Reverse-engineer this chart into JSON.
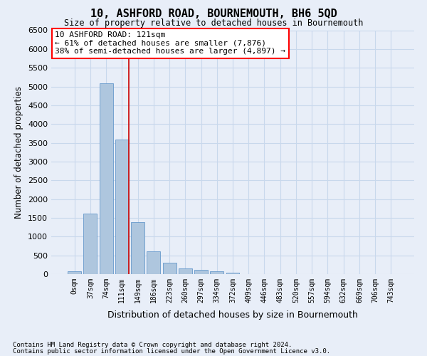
{
  "title": "10, ASHFORD ROAD, BOURNEMOUTH, BH6 5QD",
  "subtitle": "Size of property relative to detached houses in Bournemouth",
  "xlabel": "Distribution of detached houses by size in Bournemouth",
  "ylabel": "Number of detached properties",
  "footnote1": "Contains HM Land Registry data © Crown copyright and database right 2024.",
  "footnote2": "Contains public sector information licensed under the Open Government Licence v3.0.",
  "bar_labels": [
    "0sqm",
    "37sqm",
    "74sqm",
    "111sqm",
    "149sqm",
    "186sqm",
    "223sqm",
    "260sqm",
    "297sqm",
    "334sqm",
    "372sqm",
    "409sqm",
    "446sqm",
    "483sqm",
    "520sqm",
    "557sqm",
    "594sqm",
    "632sqm",
    "669sqm",
    "706sqm",
    "743sqm"
  ],
  "bar_values": [
    70,
    1620,
    5080,
    3580,
    1390,
    600,
    300,
    155,
    120,
    80,
    45,
    0,
    0,
    0,
    0,
    0,
    0,
    0,
    0,
    0,
    0
  ],
  "bar_color": "#aec6de",
  "bar_edge_color": "#6699cc",
  "annotation_text": "10 ASHFORD ROAD: 121sqm\n← 61% of detached houses are smaller (7,876)\n38% of semi-detached houses are larger (4,897) →",
  "ylim": [
    0,
    6500
  ],
  "yticks": [
    0,
    500,
    1000,
    1500,
    2000,
    2500,
    3000,
    3500,
    4000,
    4500,
    5000,
    5500,
    6000,
    6500
  ],
  "grid_color": "#c8d8ec",
  "background_color": "#e8eef8",
  "vline_color": "#cc0000",
  "vline_bin": 3
}
